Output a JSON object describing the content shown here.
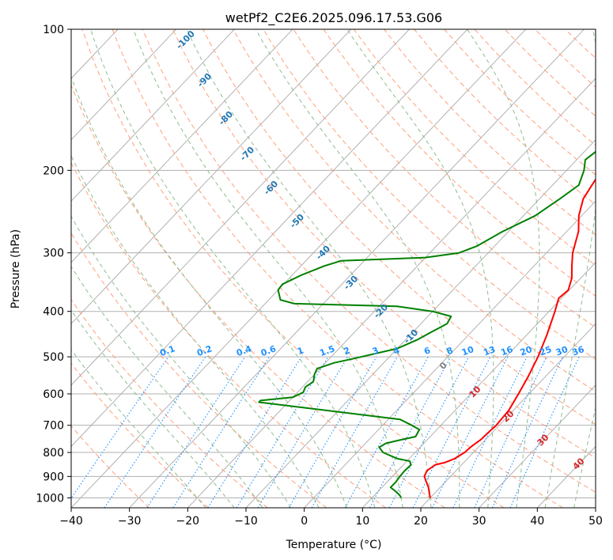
{
  "chart_data": {
    "type": "line",
    "title": "wetPf2_C2E6.2025.096.17.53.G06",
    "xlabel": "Temperature (°C)",
    "ylabel": "Pressure (hPa)",
    "xlim": [
      -40,
      50
    ],
    "ylim": [
      1050,
      100
    ],
    "y_scale": "log",
    "x_ticks": [
      "−40",
      "−30",
      "−20",
      "−10",
      "0",
      "10",
      "20",
      "30",
      "40",
      "50"
    ],
    "y_ticks": [
      "100",
      "200",
      "300",
      "400",
      "500",
      "600",
      "700",
      "800",
      "900",
      "1000"
    ],
    "grid": true,
    "series": [
      {
        "name": "",
        "color": "#ff0000",
        "points": [
          [
            20,
            1000
          ],
          [
            19,
            975
          ],
          [
            18,
            950
          ],
          [
            16.5,
            920
          ],
          [
            15.5,
            900
          ],
          [
            15,
            875
          ],
          [
            15.5,
            850
          ],
          [
            16.8,
            840
          ],
          [
            17.8,
            825
          ],
          [
            18.5,
            800
          ],
          [
            18.7,
            775
          ],
          [
            19.2,
            750
          ],
          [
            19.3,
            725
          ],
          [
            19.5,
            700
          ],
          [
            19.2,
            650
          ],
          [
            18.2,
            600
          ],
          [
            17,
            550
          ],
          [
            15.5,
            500
          ],
          [
            13.5,
            450
          ],
          [
            11,
            400
          ],
          [
            9.5,
            375
          ],
          [
            9.8,
            360
          ],
          [
            8.5,
            340
          ],
          [
            6.5,
            320
          ],
          [
            4.5,
            300
          ],
          [
            2,
            270
          ],
          [
            -0.5,
            250
          ],
          [
            -2.5,
            230
          ],
          [
            -3.5,
            210
          ],
          [
            -3.7,
            195
          ],
          [
            -3.5,
            185
          ],
          [
            -2,
            170
          ],
          [
            0.5,
            150
          ],
          [
            2,
            140
          ],
          [
            4,
            132
          ],
          [
            8,
            124
          ],
          [
            9.5,
            117
          ],
          [
            10.5,
            110
          ],
          [
            11.5,
            105
          ],
          [
            12.5,
            100
          ]
        ]
      },
      {
        "name": "",
        "color": "#008000",
        "points": [
          [
            15,
            1000
          ],
          [
            14.5,
            990
          ],
          [
            13.5,
            975
          ],
          [
            11.5,
            950
          ],
          [
            11.5,
            925
          ],
          [
            11.3,
            900
          ],
          [
            11.2,
            875
          ],
          [
            11.3,
            850
          ],
          [
            10.5,
            835
          ],
          [
            8,
            825
          ],
          [
            4.5,
            800
          ],
          [
            3,
            780
          ],
          [
            3.5,
            765
          ],
          [
            5,
            755
          ],
          [
            7.5,
            740
          ],
          [
            7,
            715
          ],
          [
            5,
            700
          ],
          [
            2,
            680
          ],
          [
            -25,
            625
          ],
          [
            -25,
            620
          ],
          [
            -20,
            610
          ],
          [
            -19,
            595
          ],
          [
            -19.5,
            580
          ],
          [
            -19,
            565
          ],
          [
            -20,
            545
          ],
          [
            -20.5,
            530
          ],
          [
            -18.5,
            515
          ],
          [
            -16,
            505
          ],
          [
            -10,
            480
          ],
          [
            -8,
            460
          ],
          [
            -7,
            445
          ],
          [
            -5.5,
            425
          ],
          [
            -6,
            410
          ],
          [
            -10,
            400
          ],
          [
            -17,
            390
          ],
          [
            -35,
            385
          ],
          [
            -38,
            378
          ],
          [
            -40,
            360
          ],
          [
            -40.2,
            350
          ],
          [
            -38.5,
            335
          ],
          [
            -36,
            320
          ],
          [
            -34,
            312
          ],
          [
            -20,
            307
          ],
          [
            -15,
            300
          ],
          [
            -13,
            290
          ],
          [
            -11,
            270
          ],
          [
            -8,
            250
          ],
          [
            -6.5,
            230
          ],
          [
            -5.5,
            215
          ],
          [
            -7,
            200
          ],
          [
            -8.5,
            190
          ],
          [
            -8,
            182
          ],
          [
            -7,
            172
          ],
          [
            -6.5,
            165
          ],
          [
            -5.5,
            155
          ],
          [
            -5,
            145
          ],
          [
            -4.8,
            135
          ],
          [
            -4.5,
            128
          ],
          [
            -3.5,
            120
          ],
          [
            -2.5,
            113
          ],
          [
            -1.5,
            107
          ],
          [
            -0.5,
            100
          ]
        ]
      }
    ],
    "dry_adiabat_labels": [
      "-100",
      "-90",
      "-80",
      "-70",
      "-60",
      "-50",
      "-40",
      "-30",
      "-20",
      "-10"
    ],
    "mixing_ratio_labels": [
      "0.1",
      "0.2",
      "0.4",
      "0.6",
      "1",
      "1.5",
      "2",
      "3",
      "4",
      "6",
      "8",
      "10",
      "13",
      "16",
      "20",
      "25",
      "30",
      "36"
    ],
    "moist_adiabat_labels": [
      "0",
      "10",
      "20",
      "30",
      "40"
    ],
    "colors": {
      "grid": "#b0b0b0",
      "isotherm": "#a9a9a9",
      "dry_adiabat": "#ffa07a",
      "moist_adiabat": "#8fbc8f",
      "mixing_ratio": "#1e90ff",
      "dry_label": "#1f77b4",
      "moist_label_zero": "#808080",
      "moist_label": "#d62728",
      "mixing_label": "#1e90ff"
    }
  }
}
